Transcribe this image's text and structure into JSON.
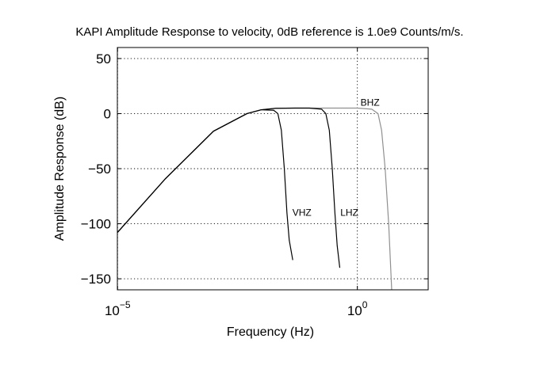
{
  "chart_data": {
    "type": "line",
    "title": "KAPI Amplitude Response to velocity, 0dB reference is 1.0e9 Counts/m/s.",
    "xlabel": "Frequency (Hz)",
    "ylabel": "Amplitude Response (dB)",
    "xscale": "log",
    "xlim": [
      9.9e-06,
      30
    ],
    "ylim": [
      -160,
      60
    ],
    "grid": true,
    "x_ticks": [
      {
        "value": 1e-05,
        "base": "10",
        "exp": "−5"
      },
      {
        "value": 1,
        "base": "10",
        "exp": "0"
      }
    ],
    "y_ticks": [
      {
        "value": 50,
        "label": "50"
      },
      {
        "value": 0,
        "label": "0"
      },
      {
        "value": -50,
        "label": "−50"
      },
      {
        "value": -100,
        "label": "−100"
      },
      {
        "value": -150,
        "label": "−150"
      }
    ],
    "series": [
      {
        "name": "VHZ",
        "color": "#000000",
        "label_at": {
          "x": 0.038,
          "y": -90
        },
        "x": [
          9.9e-06,
          0.0001,
          0.001,
          0.005,
          0.01,
          0.018,
          0.022,
          0.026,
          0.03,
          0.034,
          0.038,
          0.045
        ],
        "y": [
          -108,
          -59,
          -16,
          0,
          3.5,
          3,
          0,
          -15,
          -50,
          -90,
          -115,
          -133
        ]
      },
      {
        "name": "LHZ",
        "color": "#000000",
        "label_at": {
          "x": 0.38,
          "y": -90
        },
        "x": [
          9.9e-06,
          0.0001,
          0.001,
          0.005,
          0.01,
          0.02,
          0.05,
          0.1,
          0.18,
          0.22,
          0.26,
          0.3,
          0.34,
          0.38,
          0.43
        ],
        "y": [
          -108,
          -59,
          -16,
          0,
          3.5,
          4.8,
          5,
          5,
          4,
          0,
          -15,
          -50,
          -90,
          -120,
          -140
        ]
      },
      {
        "name": "BHZ",
        "color": "#909090",
        "label_at": {
          "x": 1.0,
          "y": 10
        },
        "x": [
          9.9e-06,
          0.0001,
          0.001,
          0.005,
          0.01,
          0.02,
          0.05,
          0.1,
          0.5,
          1,
          2,
          2.7,
          3.2,
          3.8,
          4.5,
          5.2
        ],
        "y": [
          -108,
          -59,
          -16,
          0,
          3.5,
          4.8,
          5,
          5,
          5,
          5,
          4,
          0,
          -15,
          -50,
          -100,
          -160
        ]
      }
    ]
  }
}
